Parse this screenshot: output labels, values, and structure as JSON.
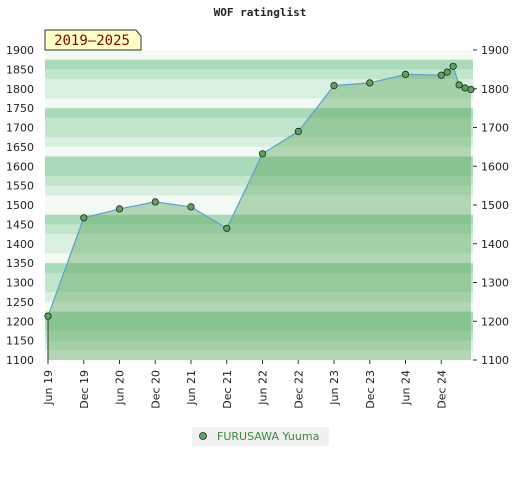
{
  "chart_data": {
    "type": "area",
    "title": "WOF ratinglist",
    "badge": "2019–2025",
    "x_ticks": [
      "Jun 19",
      "Dec 19",
      "Jun 20",
      "Dec 20",
      "Jun 21",
      "Dec 21",
      "Jun 22",
      "Dec 22",
      "Jun 23",
      "Dec 23",
      "Jun 24",
      "Dec 24"
    ],
    "ylim": [
      1100,
      1900
    ],
    "y_ticks": [
      1100,
      1150,
      1200,
      1250,
      1300,
      1350,
      1400,
      1450,
      1500,
      1550,
      1600,
      1650,
      1700,
      1750,
      1800,
      1850,
      1900
    ],
    "y_ticks_right": [
      1100,
      1200,
      1300,
      1400,
      1500,
      1600,
      1700,
      1800,
      1900
    ],
    "series": [
      {
        "name": "FURUSAWA Yuuma",
        "color": "#5aa55a",
        "line_color": "#5aa0d0",
        "points": [
          {
            "x": "2019-06",
            "y": 1213
          },
          {
            "x": "2019-12",
            "y": 1467
          },
          {
            "x": "2020-06",
            "y": 1490
          },
          {
            "x": "2020-12",
            "y": 1508
          },
          {
            "x": "2021-06",
            "y": 1495
          },
          {
            "x": "2021-12",
            "y": 1440
          },
          {
            "x": "2022-06",
            "y": 1632
          },
          {
            "x": "2022-12",
            "y": 1690
          },
          {
            "x": "2023-06",
            "y": 1808
          },
          {
            "x": "2023-12",
            "y": 1815
          },
          {
            "x": "2024-06",
            "y": 1837
          },
          {
            "x": "2024-12",
            "y": 1835
          },
          {
            "x": "2025-01",
            "y": 1843
          },
          {
            "x": "2025-02",
            "y": 1858
          },
          {
            "x": "2025-03",
            "y": 1810
          },
          {
            "x": "2025-04",
            "y": 1802
          },
          {
            "x": "2025-05",
            "y": 1798
          }
        ]
      }
    ],
    "grid": true,
    "legend_position": "bottom-center"
  }
}
